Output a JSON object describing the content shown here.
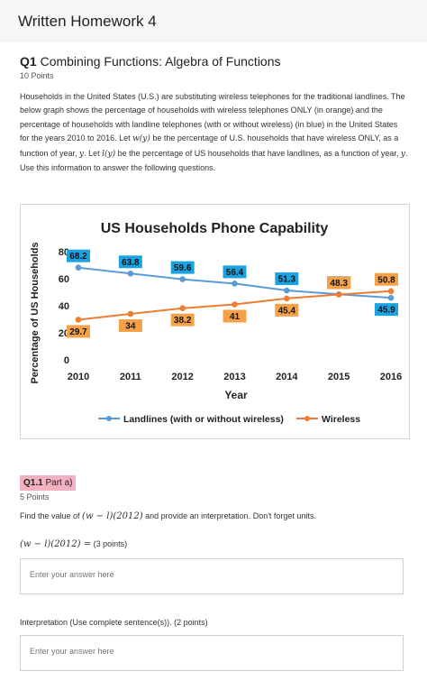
{
  "header": {
    "title": "Written Homework 4"
  },
  "question": {
    "number": "Q1",
    "title": "Combining Functions: Algebra of Functions",
    "points": "10 Points",
    "description_parts": [
      "Households in the United States (U.S.) are substituting wireless telephones for the traditional landlines. The below graph shows the percentage of households with wireless telephones ONLY (in orange) and the percentage of households with landline telephones (with or without wireless) (in blue) in the United States for the years 2010 to 2016. Let ",
      "w(y)",
      " be the percentage of U.S. households that have wireless ONLY, as a function of year, ",
      "y",
      ". Let ",
      "l(y)",
      " be the percentage of US households that have landlines, as a function of year, ",
      "y",
      ".  Use this information to answer the following questions."
    ]
  },
  "chart_data": {
    "type": "line",
    "title": "US Households Phone Capability",
    "xlabel": "Year",
    "ylabel": "Percentage of US Households",
    "x": [
      2010,
      2011,
      2012,
      2013,
      2014,
      2015,
      2016
    ],
    "y_ticks": [
      0,
      20,
      40,
      60,
      80
    ],
    "ylim": [
      0,
      80
    ],
    "grid": false,
    "legend_position": "bottom",
    "series": [
      {
        "name": "Landlines (with or without wireless)",
        "color": "#5b9bd5",
        "label_color": "#1aa3e0",
        "values": [
          68.2,
          63.8,
          59.6,
          56.4,
          51.3,
          48.5,
          45.9
        ]
      },
      {
        "name": "Wireless",
        "color": "#ed7d31",
        "label_color": "#f5a14a",
        "values": [
          29.7,
          34,
          38.2,
          41,
          45.4,
          48.3,
          50.8
        ]
      }
    ]
  },
  "part_a": {
    "number": "Q1.1",
    "label": "Part a)",
    "points": "5 Points",
    "instruction_pre": "Find the value of ",
    "expression": "(w − l)(2012)",
    "instruction_post": " and provide an interpretation. Don't forget units.",
    "equation": "(w − l)(2012) =",
    "equation_points": "(3 points)",
    "answer1_placeholder": "Enter your answer here",
    "interpretation_label": "Interpretation (Use complete sentence(s)). (2 points)",
    "answer2_placeholder": "Enter your answer here"
  }
}
